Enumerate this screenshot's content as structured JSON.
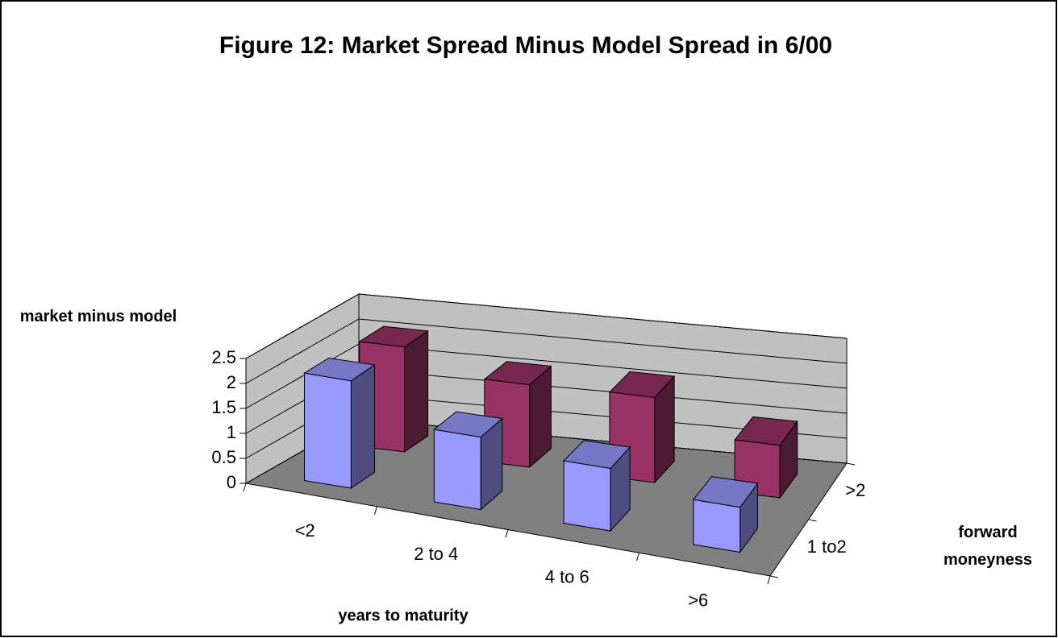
{
  "chart_data": {
    "type": "bar3d",
    "title": "Figure 12:  Market Spread Minus Model Spread in 6/00",
    "x_label": "years to maturity",
    "y_label": "market minus model",
    "z_label": "forward moneyness",
    "categories": [
      "<2",
      "2 to 4",
      "4 to 6",
      ">6"
    ],
    "series": [
      {
        "name": "1 to2",
        "color": "#9999ff",
        "values": [
          2.15,
          1.45,
          1.25,
          0.9
        ]
      },
      {
        "name": ">2",
        "color": "#993366",
        "values": [
          2.1,
          1.65,
          1.7,
          1.05
        ]
      }
    ],
    "ylim": [
      0,
      2.5
    ],
    "yticks": [
      0,
      0.5,
      1,
      1.5,
      2,
      2.5
    ],
    "grid": true
  }
}
